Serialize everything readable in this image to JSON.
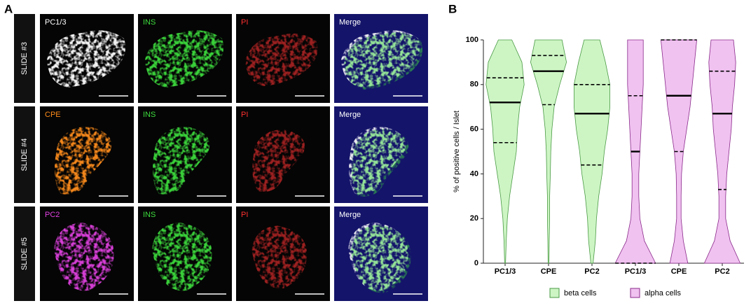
{
  "panel_a": {
    "label": "A",
    "rows": [
      {
        "slide": "SLIDE #3",
        "channels": [
          {
            "name": "PC1/3",
            "color": "#ffffff"
          },
          {
            "name": "INS",
            "color": "#3ddc3d"
          },
          {
            "name": "PI",
            "color": "#ff3030"
          },
          {
            "name": "Merge",
            "color": "#ffffff"
          }
        ]
      },
      {
        "slide": "SLIDE #4",
        "channels": [
          {
            "name": "CPE",
            "color": "#ff8c1a"
          },
          {
            "name": "INS",
            "color": "#3ddc3d"
          },
          {
            "name": "PI",
            "color": "#ff3030"
          },
          {
            "name": "Merge",
            "color": "#ffffff"
          }
        ]
      },
      {
        "slide": "SLIDE #5",
        "channels": [
          {
            "name": "PC2",
            "color": "#e040e0"
          },
          {
            "name": "INS",
            "color": "#3ddc3d"
          },
          {
            "name": "PI",
            "color": "#ff3030"
          },
          {
            "name": "Merge",
            "color": "#ffffff"
          }
        ]
      }
    ]
  },
  "chart_data": {
    "type": "violin",
    "panel_label": "B",
    "ylabel": "% of positive cells / Islet",
    "categories": [
      "PC1/3",
      "CPE",
      "PC2",
      "PC1/3",
      "CPE",
      "PC2"
    ],
    "ylim": [
      0,
      100
    ],
    "yticks": [
      0,
      20,
      40,
      60,
      80,
      100
    ],
    "density_levels": [
      0,
      10,
      20,
      30,
      40,
      50,
      60,
      70,
      80,
      90,
      100
    ],
    "series": [
      {
        "name": "beta cells",
        "color": "#cdf5c4",
        "edge_color": "#4a9a44",
        "values": [
          72,
          86,
          67,
          null,
          null,
          null
        ],
        "q1": [
          54,
          71,
          44,
          null,
          null,
          null
        ],
        "q3": [
          83,
          93,
          80,
          null,
          null,
          null
        ],
        "density": [
          [
            0.02,
            0.05,
            0.1,
            0.2,
            0.35,
            0.5,
            0.55,
            0.65,
            0.85,
            0.75,
            0.3
          ],
          [
            0.02,
            0.03,
            0.05,
            0.05,
            0.08,
            0.1,
            0.15,
            0.25,
            0.5,
            0.8,
            0.6
          ],
          [
            0.05,
            0.15,
            0.2,
            0.3,
            0.45,
            0.55,
            0.7,
            0.8,
            0.8,
            0.6,
            0.35
          ],
          null,
          null,
          null
        ]
      },
      {
        "name": "alpha cells",
        "color": "#f0c2f0",
        "edge_color": "#8a2a8a",
        "values": [
          null,
          null,
          null,
          50,
          75,
          67
        ],
        "q1": [
          null,
          null,
          null,
          0,
          50,
          33
        ],
        "q3": [
          null,
          null,
          null,
          75,
          100,
          86
        ],
        "density": [
          null,
          null,
          null,
          [
            0.9,
            0.4,
            0.2,
            0.15,
            0.15,
            0.2,
            0.25,
            0.3,
            0.35,
            0.35,
            0.35
          ],
          [
            0.4,
            0.2,
            0.1,
            0.1,
            0.12,
            0.2,
            0.35,
            0.5,
            0.6,
            0.7,
            0.8
          ],
          [
            0.8,
            0.35,
            0.15,
            0.15,
            0.2,
            0.3,
            0.4,
            0.45,
            0.55,
            0.6,
            0.5
          ]
        ]
      }
    ]
  }
}
